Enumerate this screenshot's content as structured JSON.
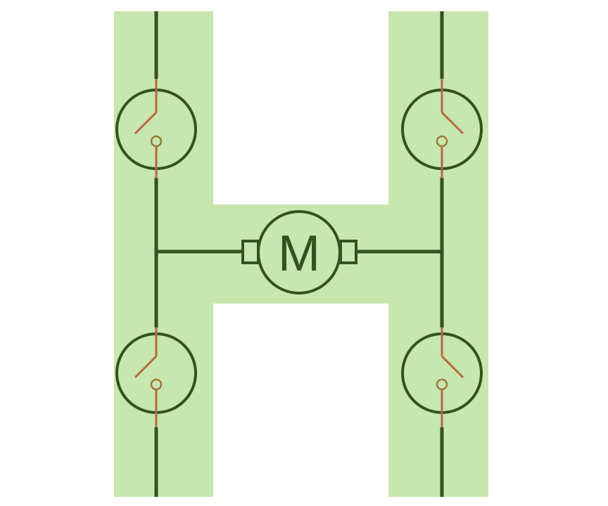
{
  "motor": {
    "label": "M"
  },
  "colors": {
    "background": "#ffffff",
    "h_fill": "#c8e6b0",
    "wire": "#33521f",
    "switch_blade": "#b5683f",
    "switch_contact": "#9a7a3a"
  },
  "switches": [
    {
      "id": "top-left",
      "label": ""
    },
    {
      "id": "bottom-left",
      "label": ""
    },
    {
      "id": "top-right",
      "label": ""
    },
    {
      "id": "bottom-right",
      "label": ""
    }
  ]
}
